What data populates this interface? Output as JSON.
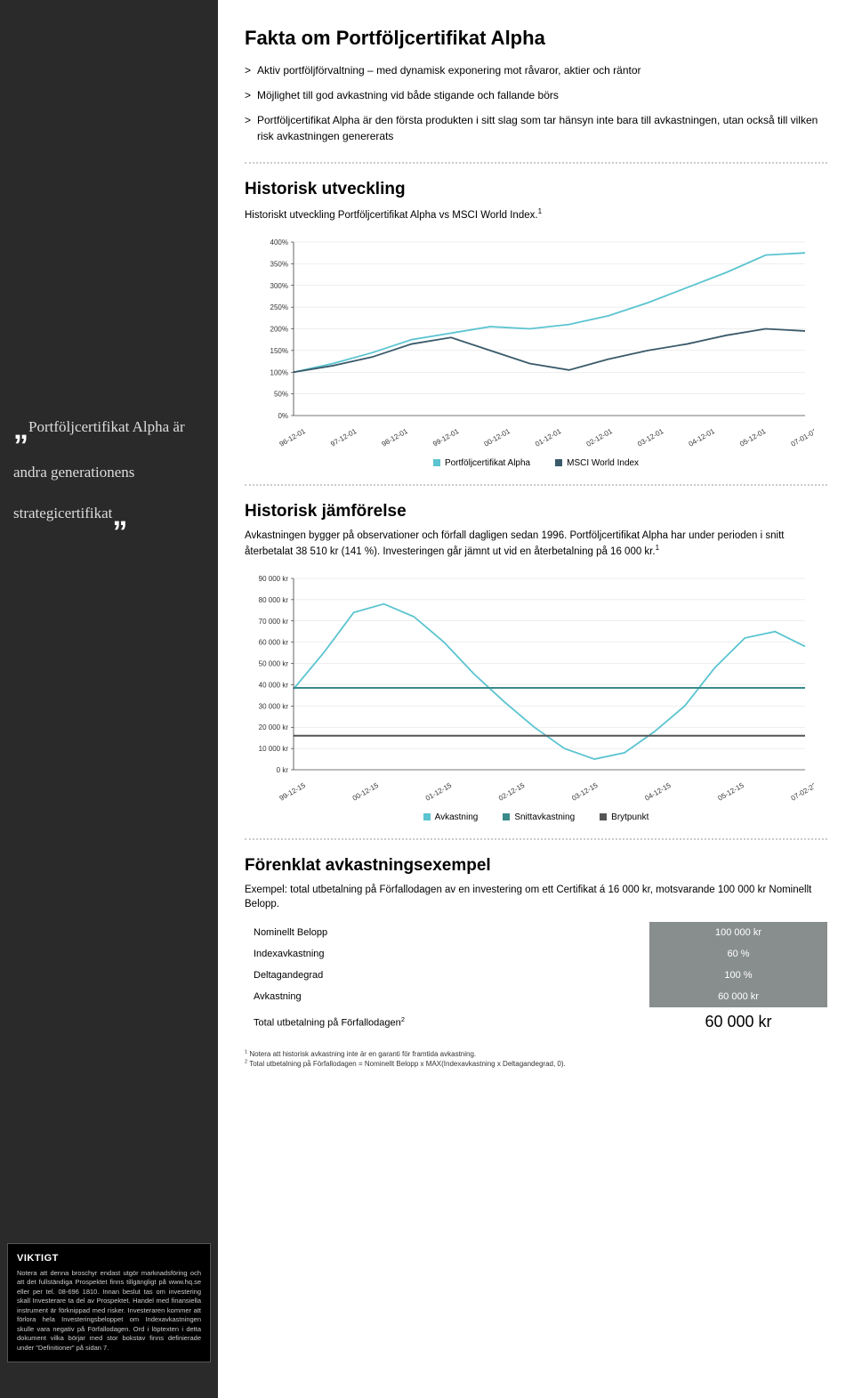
{
  "sidebar": {
    "quote": "Portföljcertifikat Alpha är andra generationens strategicertifikat",
    "viktigt_title": "VIKTIGT",
    "viktigt_text": "Notera att denna broschyr endast utgör marknadsföring och att det fullständiga Prospektet finns tillgängligt på www.hq.se eller per tel. 08-696 1810. Innan beslut tas om investering skall Investerare ta del av Prospektet. Handel med finansiella instrument är förknippad med risker. Investeraren kommer att förlora hela Investeringsbeloppet om Indexavkastningen skulle vara negativ på Förfallodagen. Ord i löptexten i detta dokument vilka börjar med stor bokstav finns definierade under \"Definitioner\" på sidan 7."
  },
  "fakta": {
    "title": "Fakta om Portföljcertifikat Alpha",
    "bullets": [
      "Aktiv portföljförvaltning – med dynamisk exponering mot råvaror, aktier och räntor",
      "Möjlighet till god avkastning vid både stigande och fallande börs",
      "Portföljcertifikat Alpha är den första produkten i sitt slag som tar hänsyn inte bara till avkastningen, utan också till vilken risk avkastningen genererats"
    ]
  },
  "chart1": {
    "title": "Historisk utveckling",
    "subtitle": "Historiskt utveckling Portföljcertifikat Alpha vs MSCI World Index.",
    "sup": "1",
    "y_ticks": [
      "400%",
      "350%",
      "300%",
      "250%",
      "200%",
      "150%",
      "100%",
      "50%",
      "0%"
    ],
    "y_max": 400,
    "x_labels": [
      "96-12-01",
      "97-12-01",
      "98-12-01",
      "99-12-01",
      "00-12-01",
      "01-12-01",
      "02-12-01",
      "03-12-01",
      "04-12-01",
      "05-12-01",
      "07-01-01"
    ],
    "series": [
      {
        "name": "Portföljcertifikat Alpha",
        "color": "#5bc4d0",
        "points": [
          100,
          120,
          145,
          175,
          190,
          205,
          200,
          210,
          230,
          260,
          295,
          330,
          370,
          375
        ]
      },
      {
        "name": "MSCI World Index",
        "color": "#3a5a6a",
        "points": [
          100,
          115,
          135,
          165,
          180,
          150,
          120,
          105,
          130,
          150,
          165,
          185,
          200,
          195
        ]
      }
    ],
    "legend": [
      {
        "label": "Portföljcertifikat Alpha",
        "color": "#5bc4d0"
      },
      {
        "label": "MSCI World Index",
        "color": "#3a5a6a"
      }
    ],
    "bg": "#ffffff",
    "grid": "#dddddd",
    "axis_font": 8
  },
  "chart2": {
    "title": "Historisk jämförelse",
    "subtitle": "Avkastningen bygger på observationer och förfall dagligen sedan 1996. Portföljcertifikat Alpha har under perioden i snitt återbetalat 38 510 kr (141 %). Investeringen går jämnt ut vid en återbetalning på 16 000 kr.",
    "sup": "1",
    "y_ticks": [
      "90 000 kr",
      "80 000 kr",
      "70 000 kr",
      "60 000 kr",
      "50 000 kr",
      "40 000 kr",
      "30 000 kr",
      "20 000 kr",
      "10 000 kr",
      "0 kr"
    ],
    "y_max": 90000,
    "x_labels": [
      "99-12-15",
      "00-12-15",
      "01-12-15",
      "02-12-15",
      "03-12-15",
      "04-12-15",
      "05-12-15",
      "07-02-22"
    ],
    "series": [
      {
        "name": "Avkastning",
        "color": "#5bc4d0",
        "points": [
          38000,
          55000,
          74000,
          78000,
          72000,
          60000,
          45000,
          32000,
          20000,
          10000,
          5000,
          8000,
          18000,
          30000,
          48000,
          62000,
          65000,
          58000
        ]
      },
      {
        "name": "Snittavkastning",
        "color": "#3a8a8a",
        "flat": 38510
      },
      {
        "name": "Brytpunkt",
        "color": "#555555",
        "flat": 16000
      }
    ],
    "legend": [
      {
        "label": "Avkastning",
        "color": "#5bc4d0"
      },
      {
        "label": "Snittavkastning",
        "color": "#3a8a8a"
      },
      {
        "label": "Brytpunkt",
        "color": "#555555"
      }
    ],
    "bg": "#ffffff",
    "grid": "#dddddd",
    "axis_font": 8
  },
  "example": {
    "title": "Förenklat avkastningsexempel",
    "subtitle": "Exempel: total utbetalning på Förfallodagen av en investering om ett Certifikat á 16 000 kr, motsvarande 100 000 kr Nominellt Belopp.",
    "rows": [
      {
        "label": "Nominellt Belopp",
        "value": "100 000 kr"
      },
      {
        "label": "Indexavkastning",
        "value": "60 %"
      },
      {
        "label": "Deltagandegrad",
        "value": "100 %"
      },
      {
        "label": "Avkastning",
        "value": "60 000 kr"
      }
    ],
    "total": {
      "label": "Total utbetalning på Förfallodagen",
      "sup": "2",
      "value": "60 000 kr"
    }
  },
  "footnotes": [
    {
      "n": "1",
      "text": "Notera att historisk avkastning inte är en garanti för framtida avkastning."
    },
    {
      "n": "2",
      "text": "Total utbetalning på Förfallodagen = Nominellt Belopp x MAX(Indexavkastning x Deltagandegrad, 0)."
    }
  ]
}
